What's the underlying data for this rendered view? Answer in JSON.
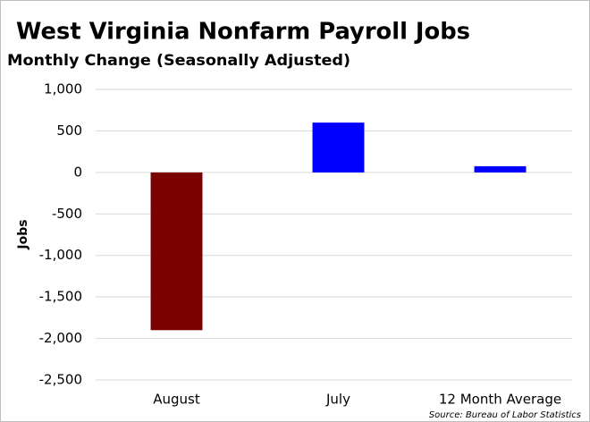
{
  "chart_data": {
    "type": "bar",
    "title": "West Virginia Nonfarm Payroll Jobs",
    "subtitle": "Monthly Change (Seasonally Adjusted)",
    "y_label": "Jobs",
    "source": "Source: Bureau of Labor Statistics",
    "categories": [
      "August",
      "July",
      "12 Month Average"
    ],
    "values": [
      -1900,
      600,
      75
    ],
    "colors": [
      "#7b0000",
      "#0000ff",
      "#0000ff"
    ],
    "ylim": [
      -2500,
      1000
    ],
    "yticks": [
      {
        "value": 1000,
        "label": "1,000"
      },
      500,
      0,
      -500,
      {
        "value": -1000,
        "label": "-1,000"
      },
      {
        "value": -1500,
        "label": "-1,500"
      },
      {
        "value": -2000,
        "label": "-2,000"
      },
      {
        "value": -2500,
        "label": "-2,500"
      }
    ],
    "grid": true
  }
}
